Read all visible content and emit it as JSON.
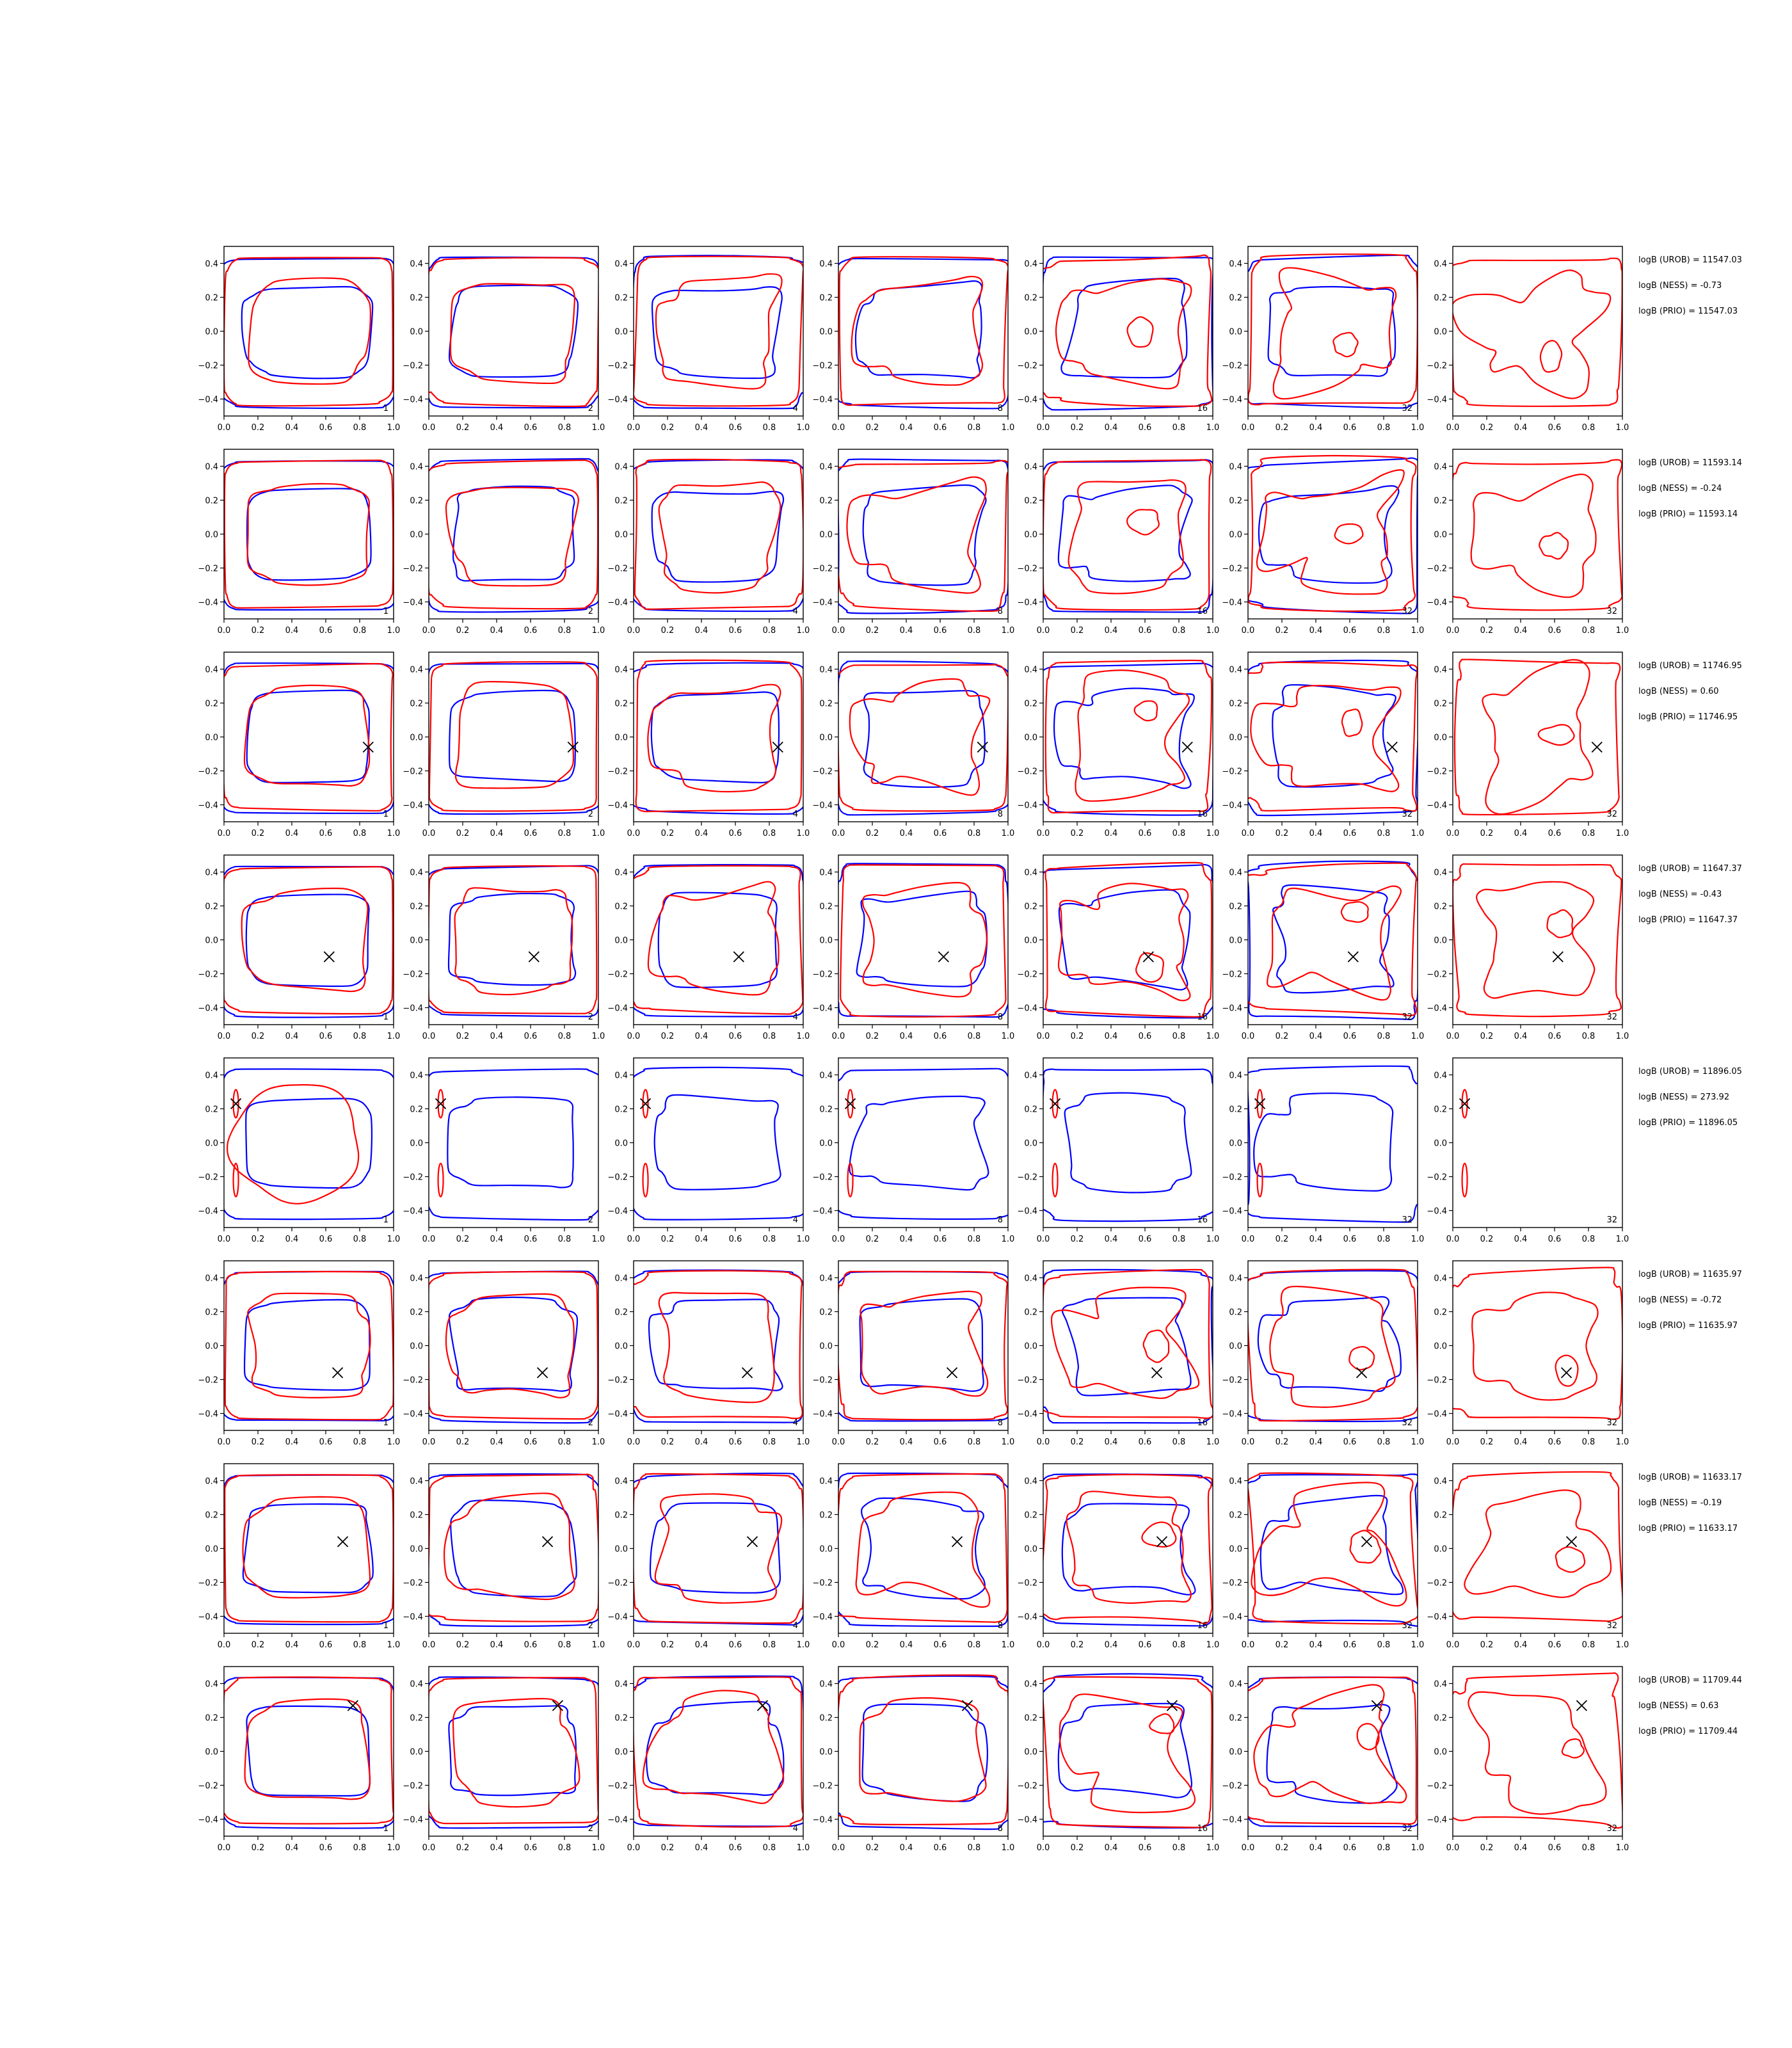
{
  "chart_data": {
    "type": "contour-grid",
    "layout": {
      "rows": 8,
      "cols": 7
    },
    "panel_labels": [
      "1",
      "2",
      "4",
      "8",
      "16",
      "32",
      "32"
    ],
    "xlim": [
      0.0,
      1.0
    ],
    "ylim": [
      -0.5,
      0.5
    ],
    "x_ticks": [
      "0.0",
      "0.2",
      "0.4",
      "0.6",
      "0.8",
      "1.0"
    ],
    "y_ticks": [
      "0.4",
      "0.2",
      "0.0",
      "−0.2",
      "−0.4"
    ],
    "series": [
      {
        "name": "",
        "color": "#0000ff"
      },
      {
        "name": "",
        "color": "#ff0000"
      }
    ],
    "rows": [
      {
        "marker": null,
        "annotations": [
          "logB (UROB) = 11547.03",
          "logB (NESS) = -0.73",
          "logB (PRIO) = 11547.03"
        ]
      },
      {
        "marker": null,
        "annotations": [
          "logB (UROB) = 11593.14",
          "logB (NESS) = -0.24",
          "logB (PRIO) = 11593.14"
        ]
      },
      {
        "marker": [
          0.85,
          -0.06
        ],
        "annotations": [
          "logB (UROB) = 11746.95",
          "logB (NESS) = 0.60",
          "logB (PRIO) = 11746.95"
        ]
      },
      {
        "marker": [
          0.62,
          -0.1
        ],
        "annotations": [
          "logB (UROB) = 11647.37",
          "logB (NESS) = -0.43",
          "logB (PRIO) = 11647.37"
        ]
      },
      {
        "marker": [
          0.07,
          0.23
        ],
        "annotations": [
          "logB (UROB) = 11896.05",
          "logB (NESS) = 273.92",
          "logB (PRIO) = 11896.05"
        ]
      },
      {
        "marker": [
          0.67,
          -0.16
        ],
        "annotations": [
          "logB (UROB) = 11635.97",
          "logB (NESS) = -0.72",
          "logB (PRIO) = 11635.97"
        ]
      },
      {
        "marker": [
          0.7,
          0.04
        ],
        "annotations": [
          "logB (UROB) = 11633.17",
          "logB (NESS) = -0.19",
          "logB (PRIO) = 11633.17"
        ]
      },
      {
        "marker": [
          0.76,
          0.27
        ],
        "annotations": [
          "logB (UROB) = 11709.44",
          "logB (NESS) = 0.63",
          "logB (PRIO) = 11709.44"
        ]
      }
    ]
  }
}
